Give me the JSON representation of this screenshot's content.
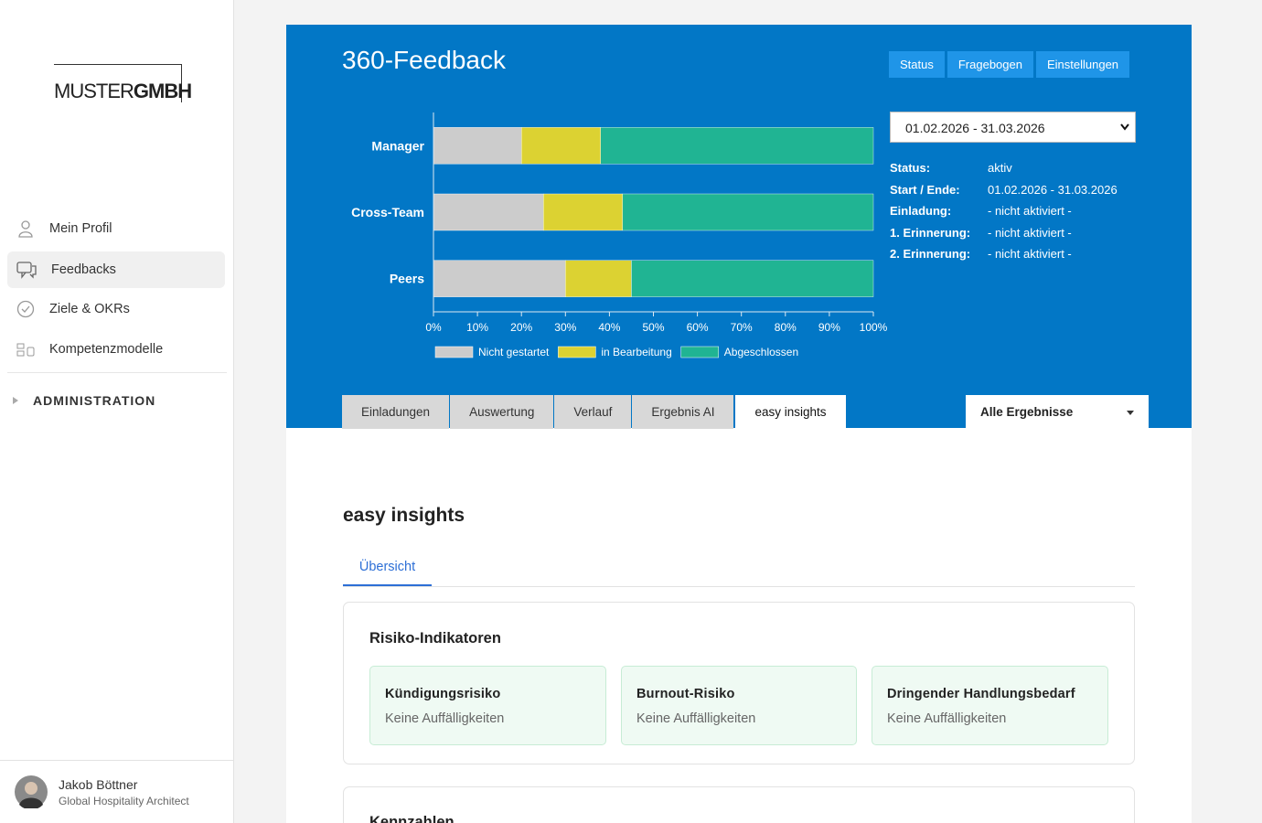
{
  "sidebar": {
    "logo": {
      "light": "MUSTER",
      "bold": "GMBH"
    },
    "nav": [
      "Mein Profil",
      "Feedbacks",
      "Ziele & OKRs",
      "Kompetenzmodelle"
    ],
    "admin": "ADMINISTRATION",
    "user": {
      "name": "Jakob Böttner",
      "role": "Global Hospitality Architect"
    }
  },
  "header": {
    "title": "360-Feedback",
    "buttons": [
      "Status",
      "Fragebogen",
      "Einstellungen"
    ]
  },
  "chart_data": {
    "type": "bar",
    "orientation": "horizontal",
    "stacked": true,
    "categories": [
      "Manager",
      "Cross-Team",
      "Peers"
    ],
    "series": [
      {
        "name": "Nicht gestartet",
        "color": "#cccccc",
        "values": [
          20,
          25,
          30
        ]
      },
      {
        "name": "in Bearbeitung",
        "color": "#dcd232",
        "values": [
          18,
          18,
          15
        ]
      },
      {
        "name": "Abgeschlossen",
        "color": "#20b493",
        "values": [
          62,
          57,
          55
        ]
      }
    ],
    "xlim": [
      0,
      100
    ],
    "xticks": [
      {
        "value": 0,
        "label": "0%"
      },
      {
        "value": 10,
        "label": "10%"
      },
      {
        "value": 20,
        "label": "20%"
      },
      {
        "value": 30,
        "label": "30%"
      },
      {
        "value": 40,
        "label": "40%"
      },
      {
        "value": 50,
        "label": "50%"
      },
      {
        "value": 60,
        "label": "60%"
      },
      {
        "value": 70,
        "label": "70%"
      },
      {
        "value": 80,
        "label": "80%"
      },
      {
        "value": 90,
        "label": "90%"
      },
      {
        "value": 100,
        "label": "100%"
      }
    ],
    "legend": "bottom"
  },
  "period": {
    "select": "01.02.2026 - 31.03.2026",
    "details": [
      {
        "label": "Status:",
        "value": "aktiv"
      },
      {
        "label": "Start / Ende:",
        "value": "01.02.2026 - 31.03.2026"
      },
      {
        "label": "Einladung:",
        "value": "- nicht aktiviert -"
      },
      {
        "label": "1. Erinnerung:",
        "value": "- nicht aktiviert -"
      },
      {
        "label": "2. Erinnerung:",
        "value": "- nicht aktiviert -"
      }
    ]
  },
  "tabs": [
    "Einladungen",
    "Auswertung",
    "Verlauf",
    "Ergebnis AI",
    "easy insights"
  ],
  "filter": "Alle Ergebnisse",
  "content": {
    "title": "easy insights",
    "subtab": "Übersicht",
    "risk": {
      "title": "Risiko-Indikatoren",
      "cards": [
        {
          "title": "Kündigungsrisiko",
          "text": "Keine Auffälligkeiten"
        },
        {
          "title": "Burnout-Risiko",
          "text": "Keine Auffälligkeiten"
        },
        {
          "title": "Dringender Handlungsbedarf",
          "text": "Keine Auffälligkeiten"
        }
      ]
    },
    "next": "Kennzahlen"
  }
}
